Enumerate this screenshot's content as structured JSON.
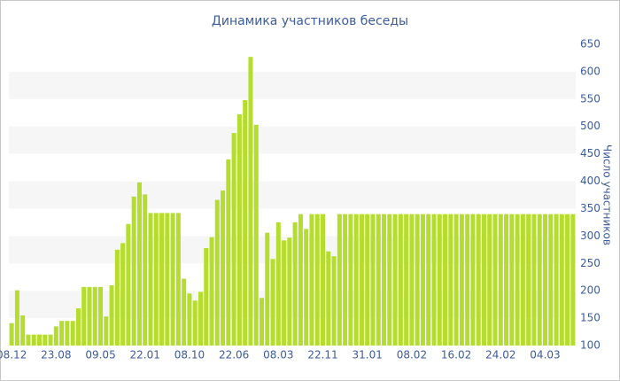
{
  "chart_data": {
    "type": "bar",
    "title": "Динамика участников беседы",
    "y_axis_label": "Число участников",
    "categories": [
      "08.12",
      null,
      null,
      null,
      null,
      null,
      null,
      null,
      "23.08",
      null,
      null,
      null,
      null,
      null,
      null,
      null,
      "09.05",
      null,
      null,
      null,
      null,
      null,
      null,
      null,
      "22.01",
      null,
      null,
      null,
      null,
      null,
      null,
      null,
      "08.10",
      null,
      null,
      null,
      null,
      null,
      null,
      null,
      "22.06",
      null,
      null,
      null,
      null,
      null,
      null,
      null,
      "08.03",
      null,
      null,
      null,
      null,
      null,
      null,
      null,
      "22.11",
      null,
      null,
      null,
      null,
      null,
      null,
      null,
      "31.01",
      null,
      null,
      null,
      null,
      null,
      null,
      null,
      "08.02",
      null,
      null,
      null,
      null,
      null,
      null,
      null,
      "16.02",
      null,
      null,
      null,
      null,
      null,
      null,
      null,
      "24.02",
      null,
      null,
      null,
      null,
      null,
      null,
      null,
      "04.03",
      null,
      null,
      null,
      null,
      null
    ],
    "values": [
      141,
      201,
      155,
      120,
      120,
      120,
      120,
      120,
      135,
      145,
      145,
      145,
      168,
      207,
      207,
      207,
      207,
      153,
      210,
      275,
      287,
      322,
      372,
      398,
      376,
      342,
      342,
      342,
      342,
      342,
      342,
      222,
      195,
      182,
      198,
      278,
      298,
      366,
      383,
      440,
      488,
      522,
      548,
      627,
      503,
      187,
      306,
      258,
      325,
      292,
      297,
      325,
      340,
      313,
      340,
      340,
      340,
      272,
      263,
      340,
      340,
      340,
      340,
      340,
      340,
      340,
      340,
      340,
      340,
      340,
      340,
      340,
      340,
      340,
      340,
      340,
      340,
      340,
      340,
      340,
      340,
      340,
      340,
      340,
      340,
      340,
      340,
      340,
      340,
      340,
      340,
      340,
      340,
      340,
      340,
      340,
      340,
      340,
      340,
      340,
      340,
      340
    ],
    "color": "#b5dd2d",
    "band_color": "#f6f6f6",
    "ylim": [
      100,
      650
    ],
    "yticks": [
      100,
      150,
      200,
      250,
      300,
      350,
      400,
      450,
      500,
      550,
      600,
      650
    ],
    "y_axis_side": "right"
  }
}
